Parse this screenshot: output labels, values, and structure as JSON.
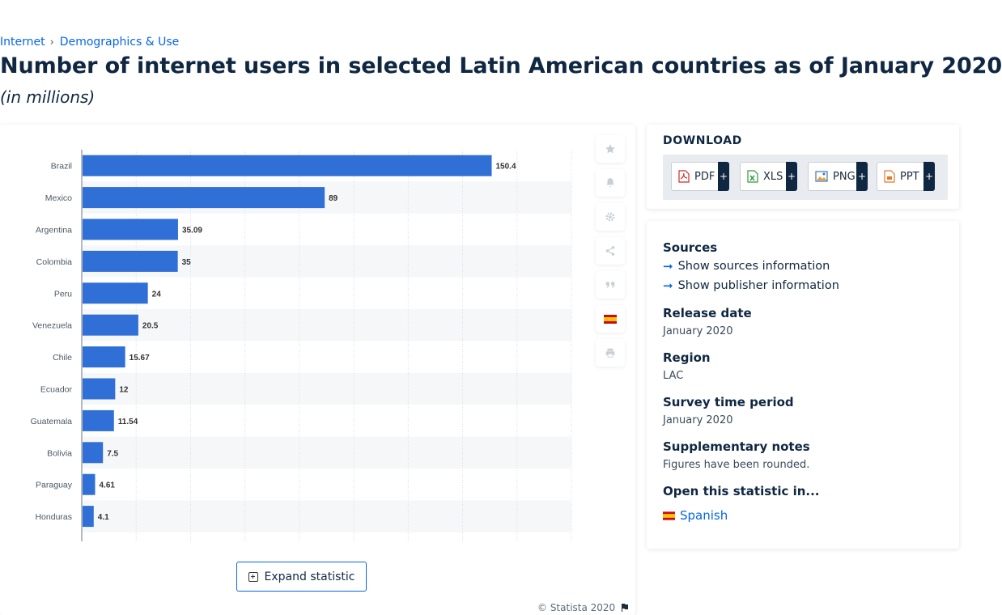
{
  "breadcrumb": {
    "item1": "Internet",
    "separator": "›",
    "item2": "Demographics & Use"
  },
  "title": "Number of internet users in selected Latin American countries as of January 2020",
  "subtitle": "(in millions)",
  "colors": {
    "bar": "#2f6fd6",
    "accent": "#0666e5",
    "text": "#0f2741",
    "stripe": "#f6f7f9"
  },
  "chart_data": {
    "type": "bar",
    "orientation": "horizontal",
    "categories": [
      "Brazil",
      "Mexico",
      "Argentina",
      "Colombia",
      "Peru",
      "Venezuela",
      "Chile",
      "Ecuador",
      "Guatemala",
      "Bolivia",
      "Paraguay",
      "Honduras"
    ],
    "values": [
      150.4,
      89,
      35.09,
      35,
      24,
      20.5,
      15.67,
      12,
      11.54,
      7.5,
      4.61,
      4.1
    ],
    "value_labels": [
      "150.4",
      "89",
      "35.09",
      "35",
      "24",
      "20.5",
      "15.67",
      "12",
      "11.54",
      "7.5",
      "4.61",
      "4.1"
    ],
    "xlim": [
      0,
      180
    ],
    "grid": true
  },
  "tools": [
    {
      "name": "favorite",
      "icon": "star-icon"
    },
    {
      "name": "notify",
      "icon": "bell-icon"
    },
    {
      "name": "settings",
      "icon": "gear-icon"
    },
    {
      "name": "share",
      "icon": "share-icon"
    },
    {
      "name": "cite",
      "icon": "quote-icon"
    },
    {
      "name": "language",
      "icon": "spain-flag-icon"
    },
    {
      "name": "print",
      "icon": "print-icon"
    }
  ],
  "expand_label": "Expand statistic",
  "copyright": "© Statista 2020",
  "download": {
    "title": "DOWNLOAD",
    "buttons": [
      {
        "label": "PDF",
        "plus": "+"
      },
      {
        "label": "XLS",
        "plus": "+"
      },
      {
        "label": "PNG",
        "plus": "+"
      },
      {
        "label": "PPT",
        "plus": "+"
      }
    ]
  },
  "info": {
    "sources_heading": "Sources",
    "show_sources": "Show sources information",
    "show_publisher": "Show publisher information",
    "release_heading": "Release date",
    "release_value": "January 2020",
    "region_heading": "Region",
    "region_value": "LAC",
    "survey_heading": "Survey time period",
    "survey_value": "January 2020",
    "notes_heading": "Supplementary notes",
    "notes_value": "Figures have been rounded.",
    "open_heading": "Open this statistic in...",
    "open_language": "Spanish"
  }
}
